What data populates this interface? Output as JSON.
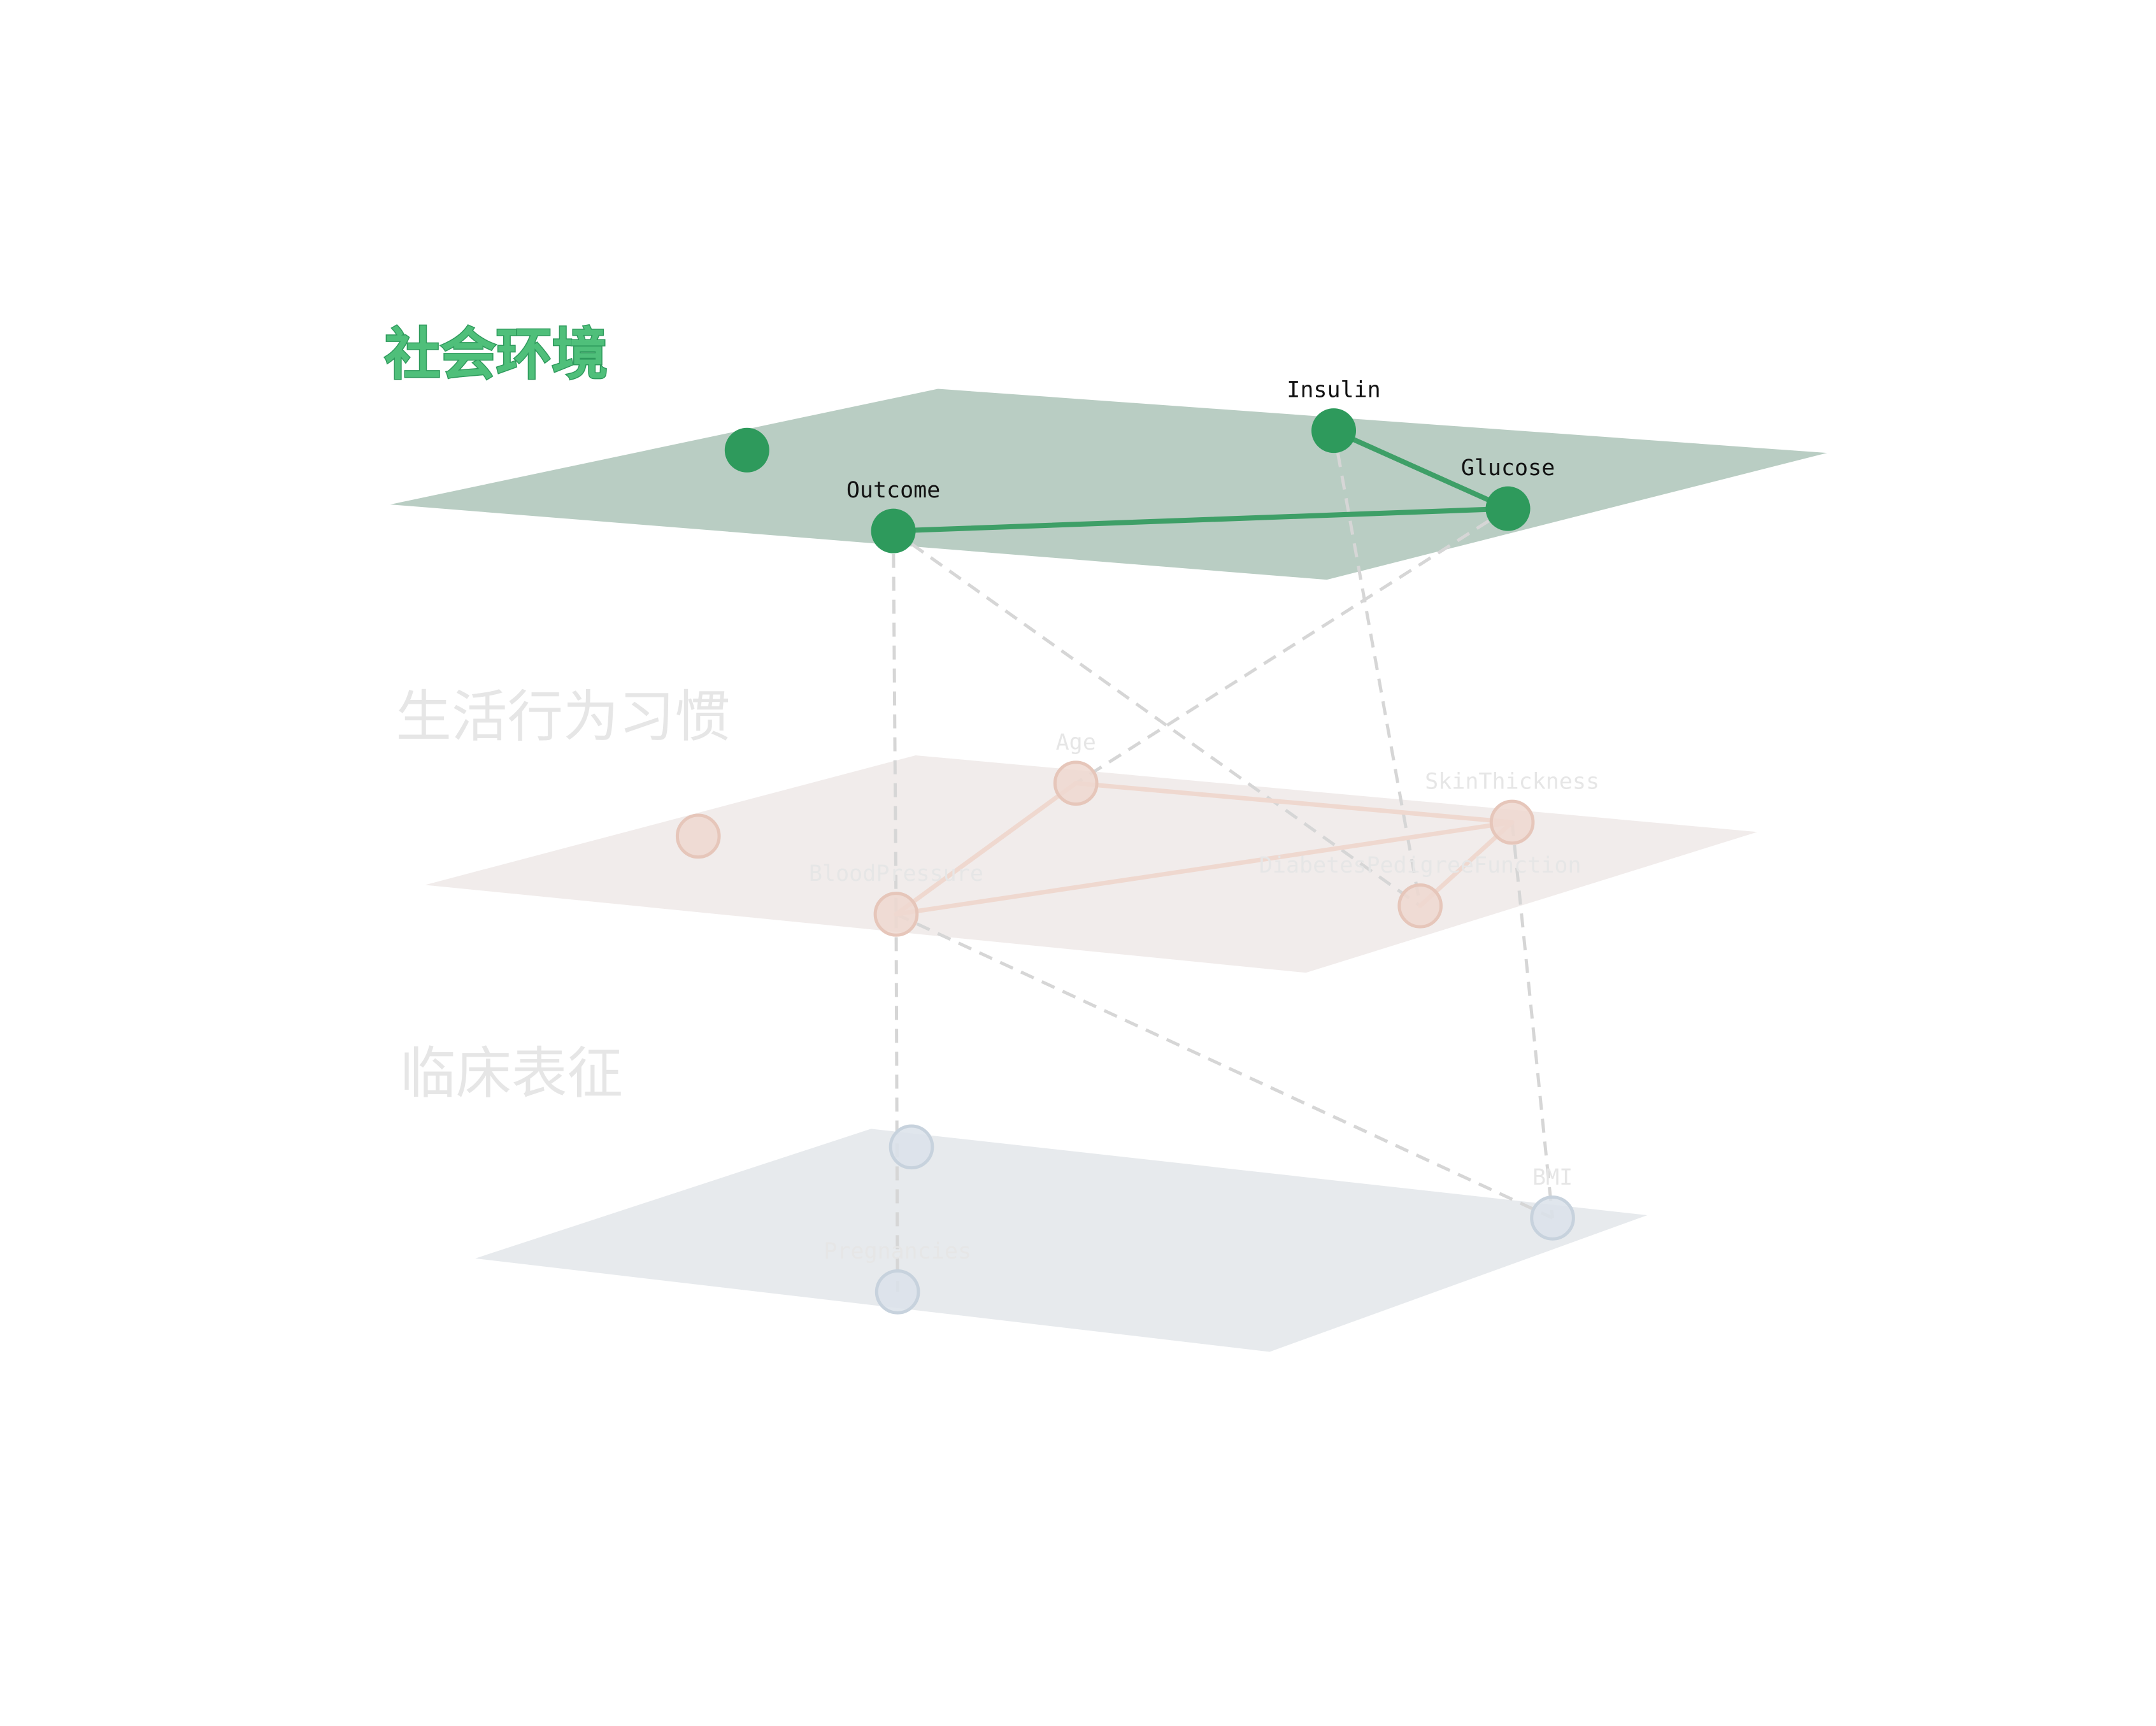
{
  "colors": {
    "background": "#ffffff",
    "interlayer_edge": "#d6d6d6",
    "social": {
      "plane": "#b9cdc3",
      "node": "#2e9a5c",
      "edge": "#3e9f67",
      "title": "#4fbf7a",
      "title_stroke": "#2e9a5c",
      "label": "#111111"
    },
    "lifestyle": {
      "plane": "#f1eceb",
      "node": "#eed8d0",
      "node_stroke": "#e6c6ba",
      "edge": "#efd8cf",
      "title": "#e6e6e6",
      "label": "#e6e6e6"
    },
    "clinical": {
      "plane": "#e7eaed",
      "node": "#dbe2ea",
      "node_stroke": "#c7d2dd",
      "edge": "#dde3ea",
      "title": "#e6e6e6",
      "label": "#e6e6e6"
    }
  },
  "layers": [
    {
      "id": "social",
      "title": "社会环境",
      "active": true,
      "nodes": [
        {
          "id": "s0",
          "label": ""
        },
        {
          "id": "insulin",
          "label": "Insulin"
        },
        {
          "id": "glucose",
          "label": "Glucose"
        },
        {
          "id": "outcome",
          "label": "Outcome"
        }
      ],
      "edges": [
        [
          "insulin",
          "glucose"
        ],
        [
          "outcome",
          "glucose"
        ]
      ]
    },
    {
      "id": "lifestyle",
      "title": "生活行为习惯",
      "active": false,
      "nodes": [
        {
          "id": "l0",
          "label": ""
        },
        {
          "id": "age",
          "label": "Age"
        },
        {
          "id": "skin",
          "label": "SkinThickness"
        },
        {
          "id": "bp",
          "label": "BloodPressure"
        },
        {
          "id": "dpf",
          "label": "DiabetesPedigreeFunction"
        }
      ],
      "edges": [
        [
          "age",
          "skin"
        ],
        [
          "age",
          "bp"
        ],
        [
          "bp",
          "skin"
        ],
        [
          "dpf",
          "skin"
        ]
      ]
    },
    {
      "id": "clinical",
      "title": "临床表征",
      "active": false,
      "nodes": [
        {
          "id": "c0",
          "label": ""
        },
        {
          "id": "bmi",
          "label": "BMI"
        },
        {
          "id": "preg",
          "label": "Pregnancies"
        }
      ],
      "edges": []
    }
  ],
  "interlayer_edges": [
    [
      "outcome",
      "bp"
    ],
    [
      "outcome",
      "dpf"
    ],
    [
      "glucose",
      "age"
    ],
    [
      "insulin",
      "dpf"
    ],
    [
      "bp",
      "preg"
    ],
    [
      "bp",
      "bmi"
    ],
    [
      "skin",
      "bmi"
    ]
  ]
}
